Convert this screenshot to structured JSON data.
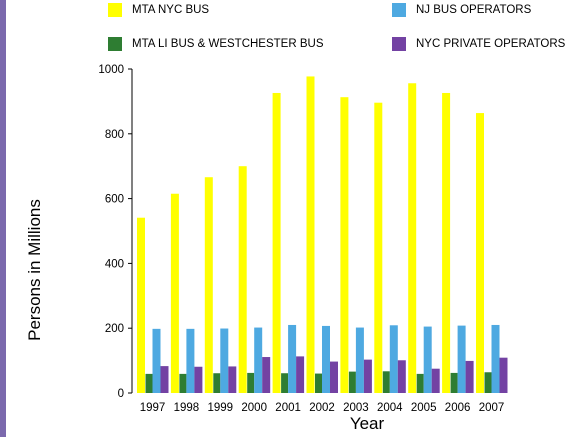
{
  "chart_data": {
    "type": "bar",
    "categories": [
      "1997",
      "1998",
      "1999",
      "2000",
      "2001",
      "2002",
      "2003",
      "2004",
      "2005",
      "2006",
      "2007"
    ],
    "series": [
      {
        "name": "MTA NYC BUS",
        "color": "#ffff00",
        "values": [
          541,
          615,
          666,
          700,
          926,
          977,
          913,
          896,
          956,
          926,
          864
        ]
      },
      {
        "name": "MTA LI BUS & WESTCHESTER BUS",
        "color": "#2e7d32",
        "values": [
          59,
          59,
          61,
          62,
          61,
          60,
          66,
          67,
          59,
          62,
          64
        ]
      },
      {
        "name": "NJ BUS OPERATORS",
        "color": "#4ea9e1",
        "values": [
          198,
          198,
          199,
          202,
          210,
          207,
          202,
          209,
          205,
          208,
          210
        ]
      },
      {
        "name": "NYC PRIVATE OPERATORS",
        "color": "#7342a3",
        "values": [
          83,
          81,
          82,
          111,
          113,
          97,
          103,
          101,
          75,
          99,
          109
        ]
      }
    ],
    "ylabel": "Persons in Millions",
    "xlabel": "Year",
    "ylim": [
      0,
      1000
    ],
    "yticks": [
      0,
      200,
      400,
      600,
      800,
      1000
    ],
    "grid": false,
    "legend_placement": "top"
  },
  "page": {
    "accent_strip_color": "#7b69ad"
  }
}
